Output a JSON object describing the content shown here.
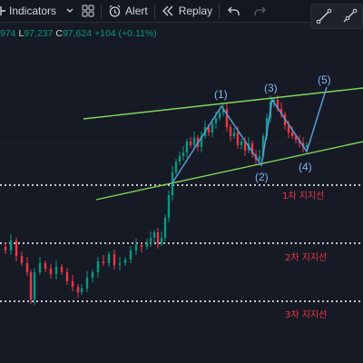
{
  "toolbar": {
    "indicators_label": "Indicators",
    "alert_label": "Alert",
    "replay_label": "Replay",
    "icons": [
      "chart-type-icon",
      "chevron-down-icon",
      "grid-layout-icon",
      "alert-clock-icon",
      "replay-icon",
      "undo-icon",
      "redo-icon"
    ]
  },
  "right_panel": {
    "icons": [
      "trend-line-icon",
      "ray-line-icon"
    ]
  },
  "ohlc": {
    "open_partial": "974",
    "low_label": "L",
    "low_value": "97,237",
    "close_label": "C",
    "close_value": "97,624",
    "change": "+104 (+0.11%)"
  },
  "support_levels": [
    {
      "label": "1차 지지선"
    },
    {
      "label": "2차 지지선"
    },
    {
      "label": "3차 지지선"
    }
  ],
  "waves": [
    "(1)",
    "(2)",
    "(3)",
    "(4)",
    "(5)"
  ],
  "colors": {
    "background": "#161a25",
    "up_candle": "#089981",
    "down_candle": "#f23645",
    "channel_line": "#7ed957",
    "wave_line": "#5b9bd5",
    "support_text": "#f23645",
    "dotted_line": "#ffffff"
  }
}
